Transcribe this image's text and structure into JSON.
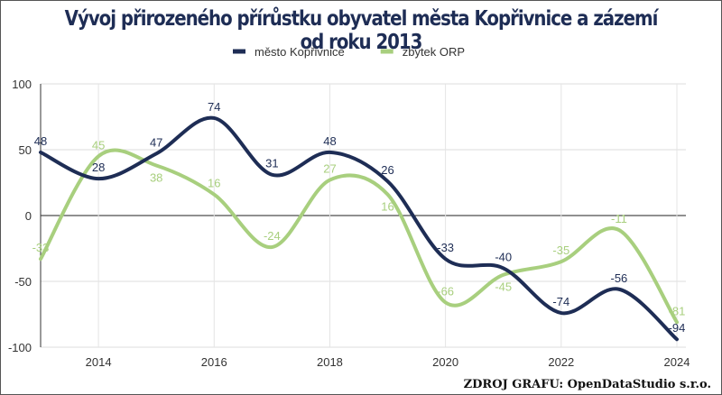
{
  "title": "Vývoj přirozeného přírůstku obyvatel města Kopřivnice a zázemí od roku 2013",
  "source": "ZDROJ GRAFU: OpenDataStudio s.r.o.",
  "chart_data": {
    "type": "line",
    "title": "Vývoj přirozeného přírůstku obyvatel města Kopřivnice a zázemí od roku 2013",
    "x": [
      2013,
      2014,
      2015,
      2016,
      2017,
      2018,
      2019,
      2020,
      2021,
      2022,
      2023,
      2024
    ],
    "x_tick_labels": [
      "2014",
      "2016",
      "2018",
      "2020",
      "2022",
      "2024"
    ],
    "y_tick_labels": [
      "100",
      "50",
      "0",
      "-50",
      "-100"
    ],
    "ylim": [
      -100,
      100
    ],
    "grid": true,
    "legend_position": "top",
    "smooth": true,
    "series": [
      {
        "name": "město Kopřivnice",
        "color": "#1e2d55",
        "values": [
          48,
          28,
          47,
          74,
          31,
          48,
          26,
          -33,
          -40,
          -74,
          -56,
          -94
        ]
      },
      {
        "name": "zbytek ORP",
        "color": "#a8cf7e",
        "values": [
          -33,
          45,
          38,
          16,
          -24,
          27,
          16,
          -66,
          -45,
          -35,
          -11,
          -81
        ]
      }
    ]
  }
}
